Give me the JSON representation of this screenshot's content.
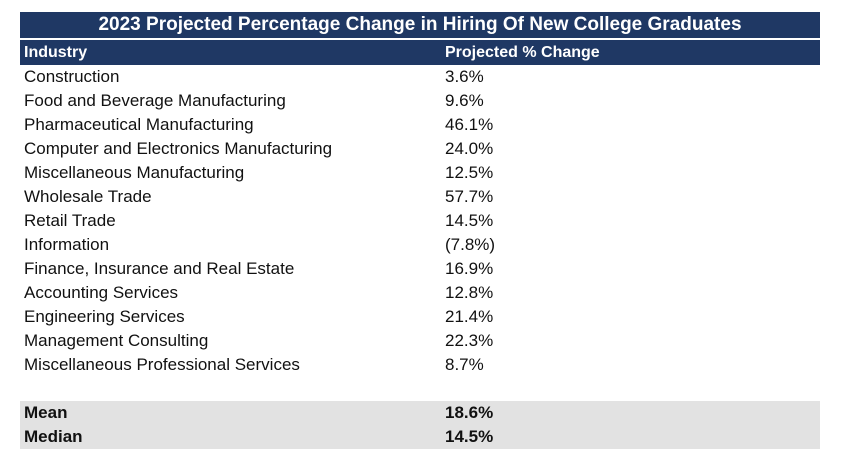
{
  "table": {
    "title": "2023 Projected Percentage Change in Hiring Of New College Graduates",
    "headers": [
      "Industry",
      "Projected % Change"
    ],
    "rows": [
      [
        "Construction",
        "3.6%"
      ],
      [
        "Food and Beverage Manufacturing",
        "9.6%"
      ],
      [
        "Pharmaceutical Manufacturing",
        "46.1%"
      ],
      [
        "Computer and Electronics Manufacturing",
        "24.0%"
      ],
      [
        "Miscellaneous Manufacturing",
        "12.5%"
      ],
      [
        "Wholesale Trade",
        "57.7%"
      ],
      [
        "Retail Trade",
        "14.5%"
      ],
      [
        "Information",
        "(7.8%)"
      ],
      [
        "Finance, Insurance and Real Estate",
        "16.9%"
      ],
      [
        "Accounting Services",
        "12.8%"
      ],
      [
        "Engineering Services",
        "21.4%"
      ],
      [
        "Management Consulting",
        "22.3%"
      ],
      [
        "Miscellaneous Professional Services",
        "8.7%"
      ]
    ],
    "summary": [
      [
        "Mean",
        "18.6%"
      ],
      [
        "Median",
        "14.5%"
      ]
    ]
  },
  "colors": {
    "header_bg": "#1f3864",
    "header_text": "#ffffff",
    "summary_bg": "#e2e2e2"
  },
  "chart_data": {
    "type": "table",
    "title": "2023 Projected Percentage Change in Hiring Of New College Graduates",
    "columns": [
      "Industry",
      "Projected % Change"
    ],
    "categories": [
      "Construction",
      "Food and Beverage Manufacturing",
      "Pharmaceutical Manufacturing",
      "Computer and Electronics Manufacturing",
      "Miscellaneous Manufacturing",
      "Wholesale Trade",
      "Retail Trade",
      "Information",
      "Finance, Insurance and Real Estate",
      "Accounting Services",
      "Engineering Services",
      "Management Consulting",
      "Miscellaneous Professional Services"
    ],
    "values": [
      3.6,
      9.6,
      46.1,
      24.0,
      12.5,
      57.7,
      14.5,
      -7.8,
      16.9,
      12.8,
      21.4,
      22.3,
      8.7
    ],
    "summary": {
      "Mean": 18.6,
      "Median": 14.5
    }
  }
}
